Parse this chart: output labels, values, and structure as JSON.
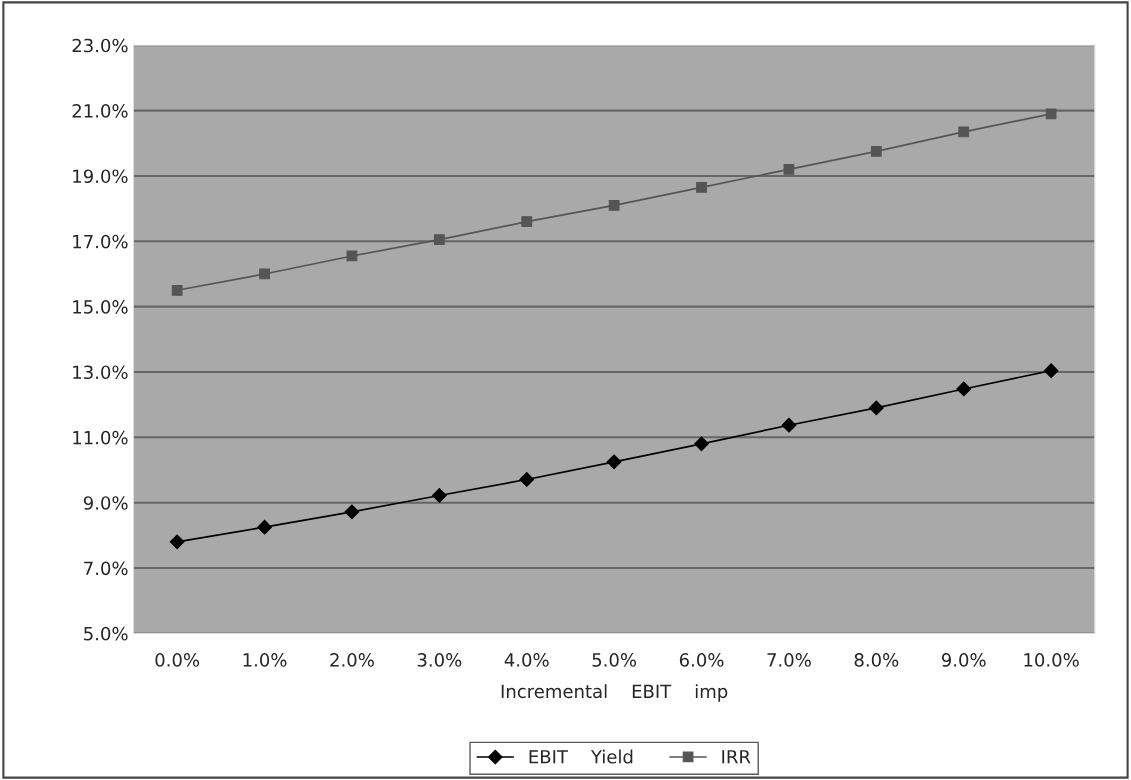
{
  "chart_data": {
    "type": "line",
    "xlabel": "Incremental    EBIT    imp",
    "categories": [
      "0.0%",
      "1.0%",
      "2.0%",
      "3.0%",
      "4.0%",
      "5.0%",
      "6.0%",
      "7.0%",
      "8.0%",
      "9.0%",
      "10.0%"
    ],
    "series": [
      {
        "name": "EBIT    Yield",
        "color": "#000000",
        "marker": "diamond",
        "values": [
          7.8,
          8.25,
          8.72,
          9.22,
          9.71,
          10.25,
          10.8,
          11.37,
          11.9,
          12.48,
          13.04
        ]
      },
      {
        "name": "IRR",
        "color": "#555555",
        "marker": "square",
        "values": [
          15.5,
          16.0,
          16.55,
          17.05,
          17.6,
          18.1,
          18.65,
          19.2,
          19.75,
          20.35,
          20.9
        ]
      }
    ],
    "ylim": [
      5,
      23
    ],
    "yticks": [
      {
        "value": 5,
        "label": "5.0%"
      },
      {
        "value": 7,
        "label": "7.0%"
      },
      {
        "value": 9,
        "label": "9.0%"
      },
      {
        "value": 11,
        "label": "11.0%"
      },
      {
        "value": 13,
        "label": "13.0%"
      },
      {
        "value": 15,
        "label": "15.0%"
      },
      {
        "value": 17,
        "label": "17.0%"
      },
      {
        "value": 19,
        "label": "19.0%"
      },
      {
        "value": 21,
        "label": "21.0%"
      },
      {
        "value": 23,
        "label": "23.0%"
      }
    ],
    "grid": "y",
    "legend": "bottom",
    "line_style": "solid"
  }
}
